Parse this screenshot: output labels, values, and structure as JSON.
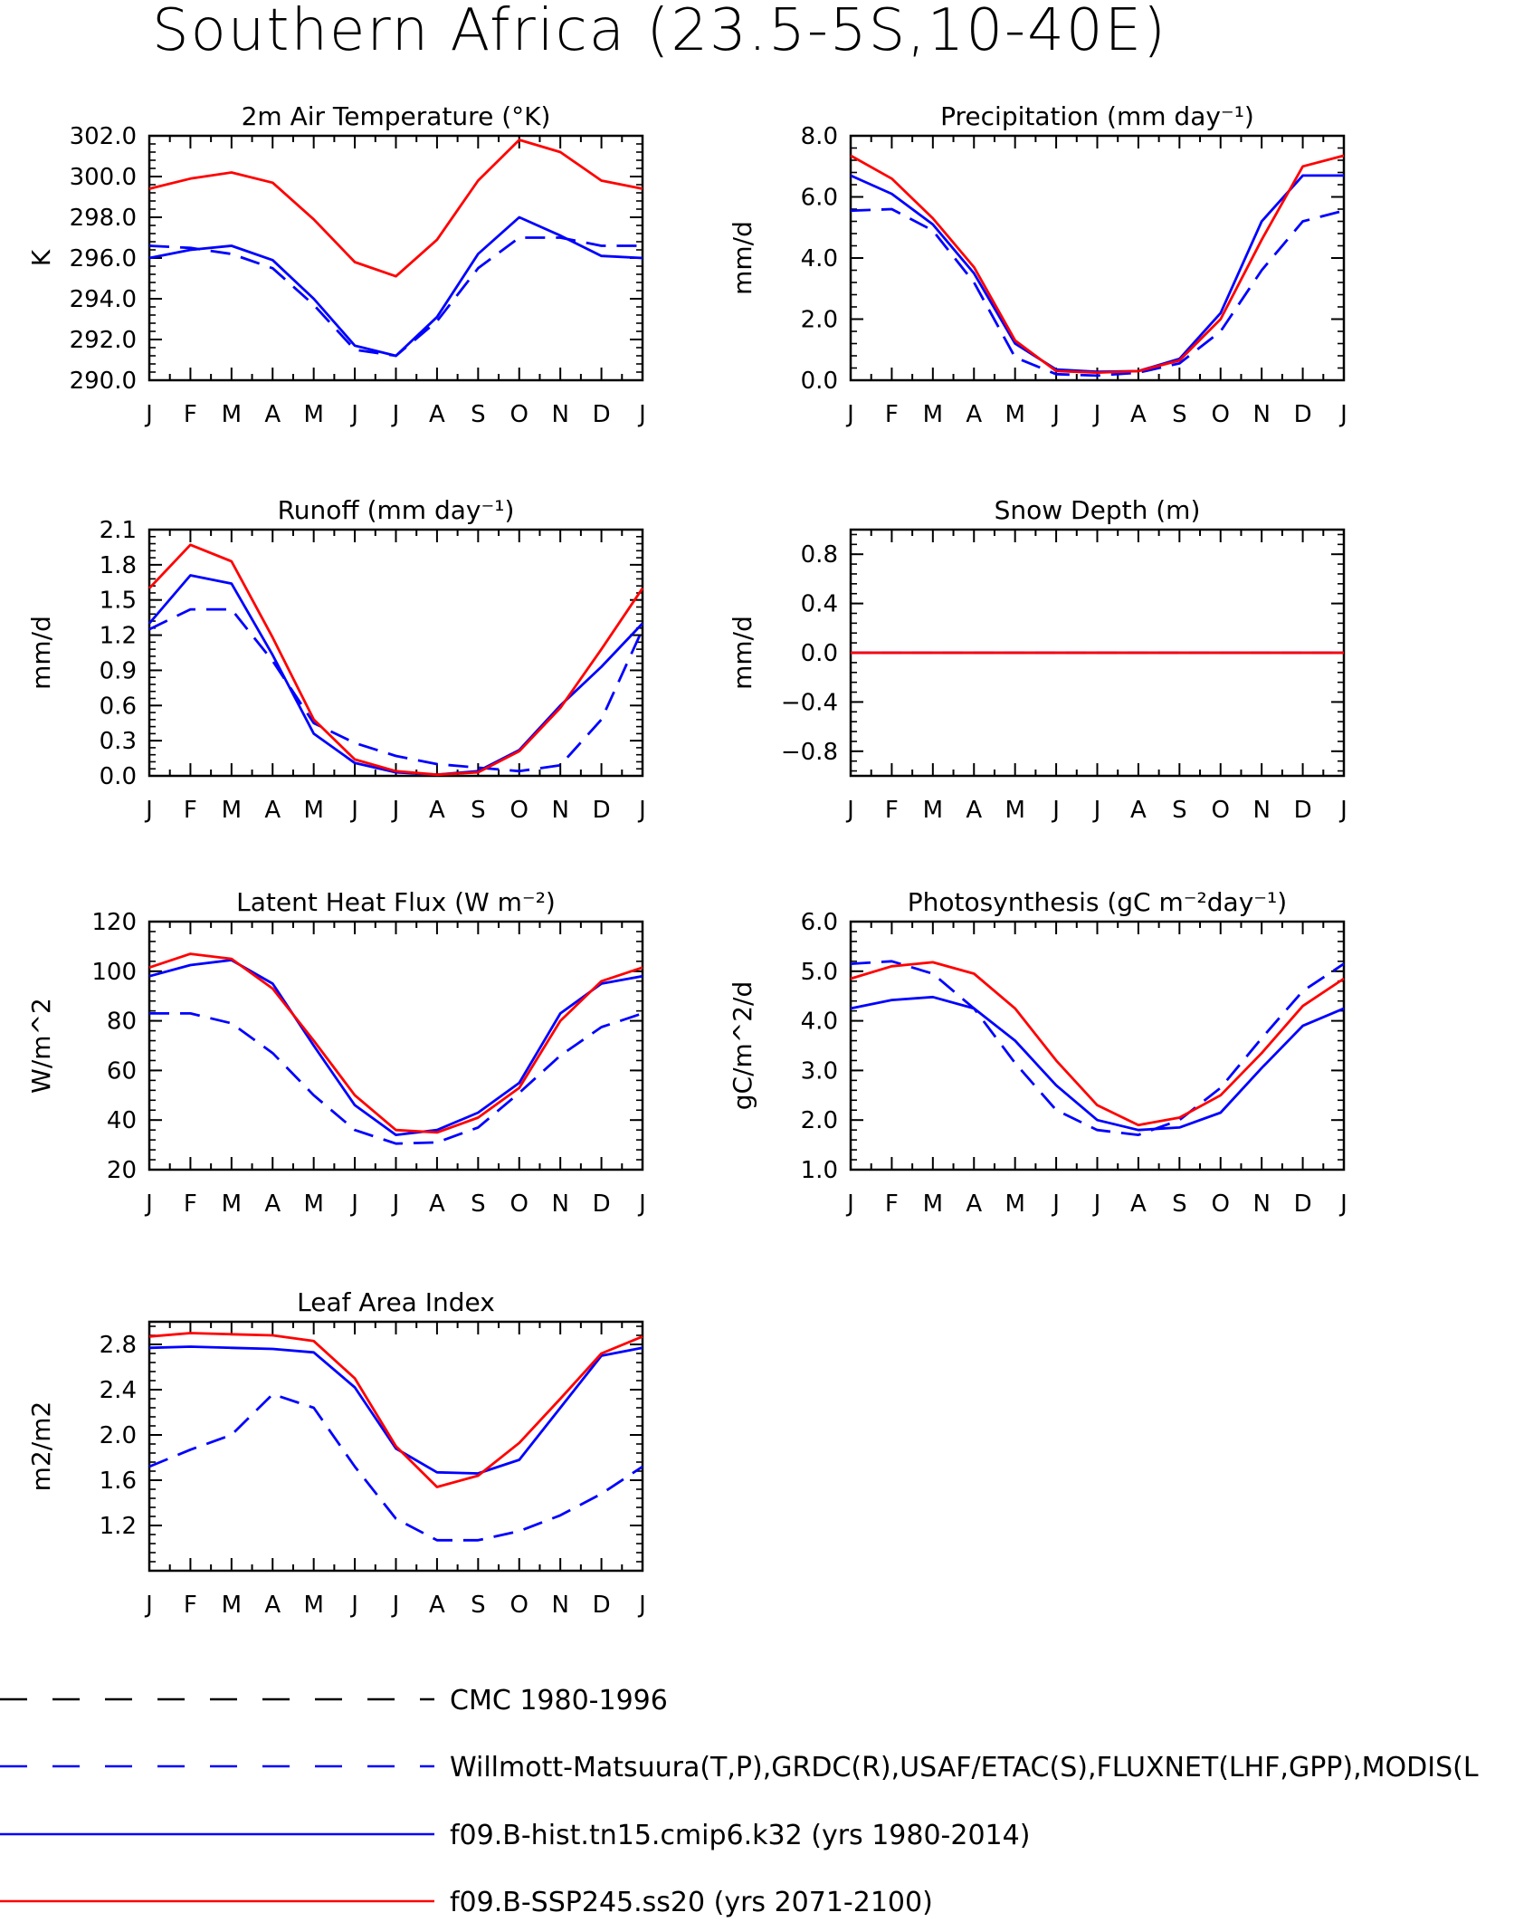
{
  "title": "Southern Africa (23.5-5S,10-40E)",
  "months": [
    "J",
    "F",
    "M",
    "A",
    "M",
    "J",
    "J",
    "A",
    "S",
    "O",
    "N",
    "D",
    "J"
  ],
  "legend": [
    {
      "label": "CMC 1980-1996",
      "color": "#000000",
      "dashed": true
    },
    {
      "label": "Willmott-Matsuura(T,P),GRDC(R),USAF/ETAC(S),FLUXNET(LHF,GPP),MODIS(L",
      "color": "#0000ff",
      "dashed": true
    },
    {
      "label": "f09.B-hist.tn15.cmip6.k32 (yrs 1980-2014)",
      "color": "#0000ff",
      "dashed": false
    },
    {
      "label": "f09.B-SSP245.ss20 (yrs 2071-2100)",
      "color": "#ff0000",
      "dashed": false
    }
  ],
  "chart_data": [
    {
      "type": "line",
      "title": "2m Air Temperature (°K)",
      "ylabel": "K",
      "ylim": [
        290,
        302
      ],
      "yticks": [
        "290.0",
        "292.0",
        "294.0",
        "296.0",
        "298.0",
        "300.0",
        "302.0"
      ],
      "x": [
        "J",
        "F",
        "M",
        "A",
        "M",
        "J",
        "J",
        "A",
        "S",
        "O",
        "N",
        "D",
        "J"
      ],
      "series": [
        {
          "name": "f09.B-SSP245.ss20 (yrs 2071-2100)",
          "color": "#ff0000",
          "dashed": false,
          "values": [
            299.4,
            299.9,
            300.2,
            299.7,
            297.9,
            295.8,
            295.1,
            296.9,
            299.8,
            301.8,
            301.2,
            299.8,
            299.4
          ]
        },
        {
          "name": "f09.B-hist.tn15.cmip6.k32 (yrs 1980-2014)",
          "color": "#0000ff",
          "dashed": false,
          "values": [
            296.0,
            296.4,
            296.6,
            295.9,
            294.0,
            291.7,
            291.2,
            293.1,
            296.2,
            298.0,
            297.1,
            296.1,
            296.0
          ]
        },
        {
          "name": "Willmott-Matsuura(T,P),GRDC(R),USAF/ETAC(S),FLUXNET(LHF,GPP),MODIS(L",
          "color": "#0000ff",
          "dashed": true,
          "values": [
            296.6,
            296.5,
            296.2,
            295.5,
            293.7,
            291.5,
            291.2,
            292.9,
            295.5,
            297.0,
            297.0,
            296.6,
            296.6
          ]
        }
      ]
    },
    {
      "type": "line",
      "title": "Precipitation (mm day⁻¹)",
      "ylabel": "mm/d",
      "ylim": [
        0,
        8
      ],
      "yticks": [
        "0.0",
        "2.0",
        "4.0",
        "6.0",
        "8.0"
      ],
      "x": [
        "J",
        "F",
        "M",
        "A",
        "M",
        "J",
        "J",
        "A",
        "S",
        "O",
        "N",
        "D",
        "J"
      ],
      "series": [
        {
          "name": "f09.B-SSP245.ss20 (yrs 2071-2100)",
          "color": "#ff0000",
          "dashed": false,
          "values": [
            7.35,
            6.6,
            5.3,
            3.7,
            1.3,
            0.3,
            0.25,
            0.3,
            0.65,
            2.0,
            4.6,
            7.0,
            7.35
          ]
        },
        {
          "name": "f09.B-hist.tn15.cmip6.k32 (yrs 1980-2014)",
          "color": "#0000ff",
          "dashed": false,
          "values": [
            6.7,
            6.1,
            5.1,
            3.5,
            1.2,
            0.35,
            0.28,
            0.3,
            0.7,
            2.2,
            5.2,
            6.7,
            6.7
          ]
        },
        {
          "name": "Willmott-Matsuura(T,P),GRDC(R),USAF/ETAC(S),FLUXNET(LHF,GPP),MODIS(L",
          "color": "#0000ff",
          "dashed": true,
          "values": [
            5.55,
            5.6,
            4.9,
            3.2,
            0.75,
            0.2,
            0.15,
            0.25,
            0.55,
            1.6,
            3.6,
            5.2,
            5.55
          ]
        }
      ]
    },
    {
      "type": "line",
      "title": "Runoff (mm day⁻¹)",
      "ylabel": "mm/d",
      "ylim": [
        0,
        2.1
      ],
      "yticks": [
        "0.0",
        "0.3",
        "0.6",
        "0.9",
        "1.2",
        "1.5",
        "1.8",
        "2.1"
      ],
      "x": [
        "J",
        "F",
        "M",
        "A",
        "M",
        "J",
        "J",
        "A",
        "S",
        "O",
        "N",
        "D",
        "J"
      ],
      "series": [
        {
          "name": "f09.B-SSP245.ss20 (yrs 2071-2100)",
          "color": "#ff0000",
          "dashed": false,
          "values": [
            1.6,
            1.97,
            1.83,
            1.18,
            0.48,
            0.14,
            0.04,
            0.01,
            0.03,
            0.21,
            0.58,
            1.08,
            1.6
          ]
        },
        {
          "name": "f09.B-hist.tn15.cmip6.k32 (yrs 1980-2014)",
          "color": "#0000ff",
          "dashed": false,
          "values": [
            1.3,
            1.71,
            1.64,
            1.03,
            0.36,
            0.11,
            0.03,
            0.01,
            0.04,
            0.22,
            0.6,
            0.93,
            1.3
          ]
        },
        {
          "name": "Willmott-Matsuura(T,P),GRDC(R),USAF/ETAC(S),FLUXNET(LHF,GPP),MODIS(L",
          "color": "#0000ff",
          "dashed": true,
          "values": [
            1.25,
            1.42,
            1.42,
            0.98,
            0.45,
            0.28,
            0.17,
            0.1,
            0.07,
            0.04,
            0.09,
            0.48,
            1.25
          ]
        }
      ]
    },
    {
      "type": "line",
      "title": "Snow Depth (m)",
      "ylabel": "mm/d",
      "ylim": [
        -1,
        1
      ],
      "yticks": [
        "-0.8",
        "-0.4",
        "0.0",
        "0.4",
        "0.8"
      ],
      "x": [
        "J",
        "F",
        "M",
        "A",
        "M",
        "J",
        "J",
        "A",
        "S",
        "O",
        "N",
        "D",
        "J"
      ],
      "series": [
        {
          "name": "f09.B-SSP245.ss20 (yrs 2071-2100)",
          "color": "#ff0000",
          "dashed": false,
          "values": [
            0,
            0,
            0,
            0,
            0,
            0,
            0,
            0,
            0,
            0,
            0,
            0,
            0
          ]
        },
        {
          "name": "f09.B-hist.tn15.cmip6.k32 (yrs 1980-2014)",
          "color": "#0000ff",
          "dashed": false,
          "values": [
            0,
            0,
            0,
            0,
            0,
            0,
            0,
            0,
            0,
            0,
            0,
            0,
            0
          ]
        },
        {
          "name": "Willmott-Matsuura(T,P),GRDC(R),USAF/ETAC(S),FLUXNET(LHF,GPP),MODIS(L",
          "color": "#0000ff",
          "dashed": true,
          "values": [
            0,
            0,
            0,
            0,
            0,
            0,
            0,
            0,
            0,
            0,
            0,
            0,
            0
          ]
        }
      ]
    },
    {
      "type": "line",
      "title": "Latent Heat Flux (W m⁻²)",
      "ylabel": "W/m^2",
      "ylim": [
        20,
        120
      ],
      "yticks": [
        "20",
        "40",
        "60",
        "80",
        "100",
        "120"
      ],
      "x": [
        "J",
        "F",
        "M",
        "A",
        "M",
        "J",
        "J",
        "A",
        "S",
        "O",
        "N",
        "D",
        "J"
      ],
      "series": [
        {
          "name": "f09.B-SSP245.ss20 (yrs 2071-2100)",
          "color": "#ff0000",
          "dashed": false,
          "values": [
            101.5,
            107,
            105,
            93,
            72,
            50,
            36,
            35,
            41,
            53,
            80,
            96,
            101.5
          ]
        },
        {
          "name": "f09.B-hist.tn15.cmip6.k32 (yrs 1980-2014)",
          "color": "#0000ff",
          "dashed": false,
          "values": [
            98,
            102.5,
            104.5,
            95,
            70,
            46,
            34,
            36,
            43,
            55,
            83,
            95,
            98
          ]
        },
        {
          "name": "Willmott-Matsuura(T,P),GRDC(R),USAF/ETAC(S),FLUXNET(LHF,GPP),MODIS(L",
          "color": "#0000ff",
          "dashed": true,
          "values": [
            83,
            83,
            79,
            67,
            50,
            36,
            30.5,
            31,
            37,
            51,
            66,
            77.5,
            83
          ]
        }
      ]
    },
    {
      "type": "line",
      "title": "Photosynthesis (gC m⁻²day⁻¹)",
      "ylabel": "gC/m^2/d",
      "ylim": [
        1,
        6
      ],
      "yticks": [
        "1.0",
        "2.0",
        "3.0",
        "4.0",
        "5.0",
        "6.0"
      ],
      "x": [
        "J",
        "F",
        "M",
        "A",
        "M",
        "J",
        "J",
        "A",
        "S",
        "O",
        "N",
        "D",
        "J"
      ],
      "series": [
        {
          "name": "f09.B-SSP245.ss20 (yrs 2071-2100)",
          "color": "#ff0000",
          "dashed": false,
          "values": [
            4.85,
            5.1,
            5.18,
            4.95,
            4.25,
            3.2,
            2.3,
            1.9,
            2.05,
            2.5,
            3.35,
            4.3,
            4.85
          ]
        },
        {
          "name": "f09.B-hist.tn15.cmip6.k32 (yrs 1980-2014)",
          "color": "#0000ff",
          "dashed": false,
          "values": [
            4.25,
            4.42,
            4.48,
            4.25,
            3.6,
            2.7,
            2.0,
            1.8,
            1.85,
            2.15,
            3.05,
            3.9,
            4.25
          ]
        },
        {
          "name": "Willmott-Matsuura(T,P),GRDC(R),USAF/ETAC(S),FLUXNET(LHF,GPP),MODIS(L",
          "color": "#0000ff",
          "dashed": true,
          "values": [
            5.15,
            5.2,
            4.95,
            4.25,
            3.15,
            2.2,
            1.8,
            1.7,
            2.0,
            2.65,
            3.65,
            4.6,
            5.15
          ]
        }
      ]
    },
    {
      "type": "line",
      "title": "Leaf Area Index",
      "ylabel": "m2/m2",
      "ylim": [
        0.8,
        3.0
      ],
      "yticks": [
        "1.2",
        "1.6",
        "2.0",
        "2.4",
        "2.8"
      ],
      "x": [
        "J",
        "F",
        "M",
        "A",
        "M",
        "J",
        "J",
        "A",
        "S",
        "O",
        "N",
        "D",
        "J"
      ],
      "series": [
        {
          "name": "f09.B-SSP245.ss20 (yrs 2071-2100)",
          "color": "#ff0000",
          "dashed": false,
          "values": [
            2.87,
            2.9,
            2.89,
            2.88,
            2.83,
            2.5,
            1.9,
            1.54,
            1.64,
            1.93,
            2.32,
            2.72,
            2.87
          ]
        },
        {
          "name": "f09.B-hist.tn15.cmip6.k32 (yrs 1980-2014)",
          "color": "#0000ff",
          "dashed": false,
          "values": [
            2.77,
            2.78,
            2.77,
            2.76,
            2.73,
            2.42,
            1.88,
            1.67,
            1.66,
            1.78,
            2.24,
            2.7,
            2.77
          ]
        },
        {
          "name": "Willmott-Matsuura(T,P),GRDC(R),USAF/ETAC(S),FLUXNET(LHF,GPP),MODIS(L",
          "color": "#0000ff",
          "dashed": true,
          "values": [
            1.72,
            1.87,
            2.0,
            2.36,
            2.24,
            1.72,
            1.26,
            1.07,
            1.07,
            1.15,
            1.29,
            1.48,
            1.72
          ]
        }
      ]
    }
  ]
}
